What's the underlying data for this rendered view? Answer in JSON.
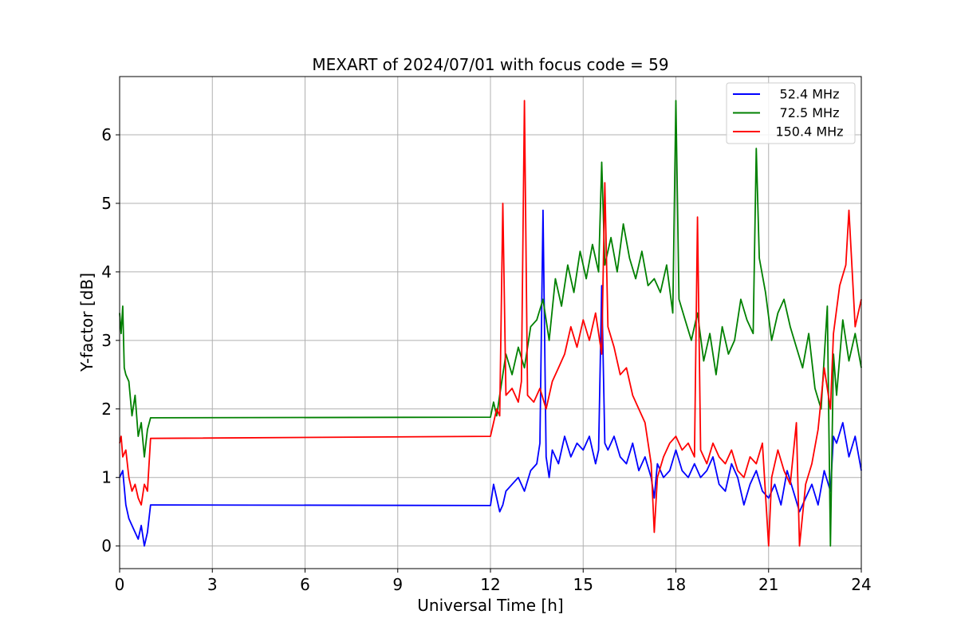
{
  "chart_data": {
    "type": "line",
    "title": "MEXART of 2024/07/01 with focus code = 59",
    "xlabel": "Universal Time [h]",
    "ylabel": "Y-factor [dB]",
    "xlim": [
      0,
      24
    ],
    "ylim": [
      -0.33,
      6.85
    ],
    "xticks": [
      0,
      3,
      6,
      9,
      12,
      15,
      18,
      21,
      24
    ],
    "xtick_labels": [
      "0",
      "3",
      "6",
      "9",
      "12",
      "15",
      "18",
      "21",
      "24"
    ],
    "yticks": [
      0,
      1,
      2,
      3,
      4,
      5,
      6
    ],
    "ytick_labels": [
      "0",
      "1",
      "2",
      "3",
      "4",
      "5",
      "6"
    ],
    "grid": true,
    "legend_position": "top-right",
    "series": [
      {
        "name": "52.4 MHz",
        "color": "#0000ff",
        "x": [
          0,
          0.1,
          0.2,
          0.3,
          0.4,
          0.5,
          0.6,
          0.7,
          0.8,
          0.9,
          1.0,
          12.0,
          12.1,
          12.2,
          12.3,
          12.4,
          12.5,
          12.7,
          12.9,
          13.1,
          13.3,
          13.5,
          13.6,
          13.7,
          13.8,
          13.9,
          14.0,
          14.2,
          14.4,
          14.6,
          14.8,
          15.0,
          15.2,
          15.4,
          15.5,
          15.6,
          15.7,
          15.8,
          16.0,
          16.2,
          16.4,
          16.6,
          16.8,
          17.0,
          17.2,
          17.3,
          17.4,
          17.6,
          17.8,
          18.0,
          18.2,
          18.4,
          18.6,
          18.8,
          19.0,
          19.2,
          19.4,
          19.6,
          19.8,
          20.0,
          20.2,
          20.4,
          20.6,
          20.8,
          21.0,
          21.2,
          21.4,
          21.6,
          21.8,
          22.0,
          22.2,
          22.4,
          22.6,
          22.8,
          23.0,
          23.1,
          23.2,
          23.4,
          23.6,
          23.8,
          24.0
        ],
        "y": [
          1.0,
          1.1,
          0.6,
          0.4,
          0.3,
          0.2,
          0.1,
          0.3,
          0.0,
          0.2,
          0.6,
          0.59,
          0.9,
          0.7,
          0.5,
          0.6,
          0.8,
          0.9,
          1.0,
          0.8,
          1.1,
          1.2,
          1.5,
          4.9,
          1.3,
          1.0,
          1.4,
          1.2,
          1.6,
          1.3,
          1.5,
          1.4,
          1.6,
          1.2,
          1.4,
          3.8,
          1.5,
          1.4,
          1.6,
          1.3,
          1.2,
          1.5,
          1.1,
          1.3,
          1.0,
          0.7,
          1.2,
          1.0,
          1.1,
          1.4,
          1.1,
          1.0,
          1.2,
          1.0,
          1.1,
          1.3,
          0.9,
          0.8,
          1.2,
          1.0,
          0.6,
          0.9,
          1.1,
          0.8,
          0.7,
          0.9,
          0.6,
          1.1,
          0.8,
          0.5,
          0.7,
          0.9,
          0.6,
          1.1,
          0.8,
          1.6,
          1.5,
          1.8,
          1.3,
          1.6,
          1.1
        ]
      },
      {
        "name": "72.5 MHz",
        "color": "#008000",
        "x": [
          0,
          0.05,
          0.1,
          0.15,
          0.2,
          0.3,
          0.4,
          0.5,
          0.6,
          0.7,
          0.8,
          0.9,
          1.0,
          12.0,
          12.1,
          12.2,
          12.3,
          12.4,
          12.5,
          12.7,
          12.9,
          13.1,
          13.3,
          13.5,
          13.7,
          13.9,
          14.1,
          14.3,
          14.5,
          14.7,
          14.9,
          15.1,
          15.3,
          15.5,
          15.6,
          15.7,
          15.9,
          16.1,
          16.3,
          16.5,
          16.7,
          16.9,
          17.1,
          17.3,
          17.5,
          17.7,
          17.9,
          18.0,
          18.1,
          18.3,
          18.5,
          18.7,
          18.9,
          19.1,
          19.3,
          19.5,
          19.7,
          19.9,
          20.1,
          20.3,
          20.5,
          20.6,
          20.7,
          20.9,
          21.1,
          21.3,
          21.5,
          21.7,
          21.9,
          22.1,
          22.3,
          22.5,
          22.7,
          22.9,
          23.0,
          23.1,
          23.2,
          23.4,
          23.6,
          23.8,
          24.0
        ],
        "y": [
          3.4,
          3.1,
          3.5,
          2.6,
          2.5,
          2.4,
          1.9,
          2.2,
          1.6,
          1.8,
          1.3,
          1.7,
          1.87,
          1.88,
          2.1,
          1.9,
          2.2,
          2.5,
          2.8,
          2.5,
          2.9,
          2.6,
          3.2,
          3.3,
          3.6,
          3.0,
          3.9,
          3.5,
          4.1,
          3.7,
          4.3,
          3.9,
          4.4,
          4.0,
          5.6,
          4.1,
          4.5,
          4.0,
          4.7,
          4.2,
          3.9,
          4.3,
          3.8,
          3.9,
          3.7,
          4.1,
          3.4,
          6.5,
          3.6,
          3.3,
          3.0,
          3.4,
          2.7,
          3.1,
          2.5,
          3.2,
          2.8,
          3.0,
          3.6,
          3.3,
          3.1,
          5.8,
          4.2,
          3.7,
          3.0,
          3.4,
          3.6,
          3.2,
          2.9,
          2.6,
          3.1,
          2.3,
          2.0,
          3.5,
          0.0,
          2.8,
          2.2,
          3.3,
          2.7,
          3.1,
          2.6
        ]
      },
      {
        "name": "150.4 MHz",
        "color": "#ff0000",
        "x": [
          0,
          0.05,
          0.1,
          0.2,
          0.3,
          0.4,
          0.5,
          0.6,
          0.7,
          0.8,
          0.9,
          1.0,
          12.0,
          12.1,
          12.2,
          12.3,
          12.4,
          12.5,
          12.7,
          12.9,
          13.0,
          13.1,
          13.2,
          13.4,
          13.6,
          13.8,
          14.0,
          14.2,
          14.4,
          14.6,
          14.8,
          15.0,
          15.2,
          15.4,
          15.6,
          15.7,
          15.8,
          16.0,
          16.2,
          16.4,
          16.6,
          16.8,
          17.0,
          17.2,
          17.3,
          17.4,
          17.6,
          17.8,
          18.0,
          18.2,
          18.4,
          18.6,
          18.7,
          18.8,
          19.0,
          19.2,
          19.4,
          19.6,
          19.8,
          20.0,
          20.2,
          20.4,
          20.6,
          20.8,
          21.0,
          21.1,
          21.3,
          21.5,
          21.7,
          21.9,
          22.0,
          22.2,
          22.4,
          22.6,
          22.8,
          23.0,
          23.1,
          23.3,
          23.5,
          23.6,
          23.8,
          24.0
        ],
        "y": [
          1.5,
          1.6,
          1.3,
          1.4,
          1.0,
          0.8,
          0.9,
          0.7,
          0.6,
          0.9,
          0.8,
          1.57,
          1.6,
          1.8,
          2.0,
          1.9,
          5.0,
          2.2,
          2.3,
          2.1,
          2.4,
          6.5,
          2.2,
          2.1,
          2.3,
          2.0,
          2.4,
          2.6,
          2.8,
          3.2,
          2.9,
          3.3,
          3.0,
          3.4,
          2.8,
          5.3,
          3.2,
          2.9,
          2.5,
          2.6,
          2.2,
          2.0,
          1.8,
          1.2,
          0.2,
          1.0,
          1.3,
          1.5,
          1.6,
          1.4,
          1.5,
          1.3,
          4.8,
          1.4,
          1.2,
          1.5,
          1.3,
          1.2,
          1.4,
          1.1,
          1.0,
          1.3,
          1.2,
          1.5,
          0.0,
          1.0,
          1.4,
          1.1,
          0.9,
          1.8,
          0.0,
          0.9,
          1.2,
          1.7,
          2.6,
          2.0,
          3.1,
          3.8,
          4.1,
          4.9,
          3.2,
          3.6
        ]
      }
    ]
  }
}
